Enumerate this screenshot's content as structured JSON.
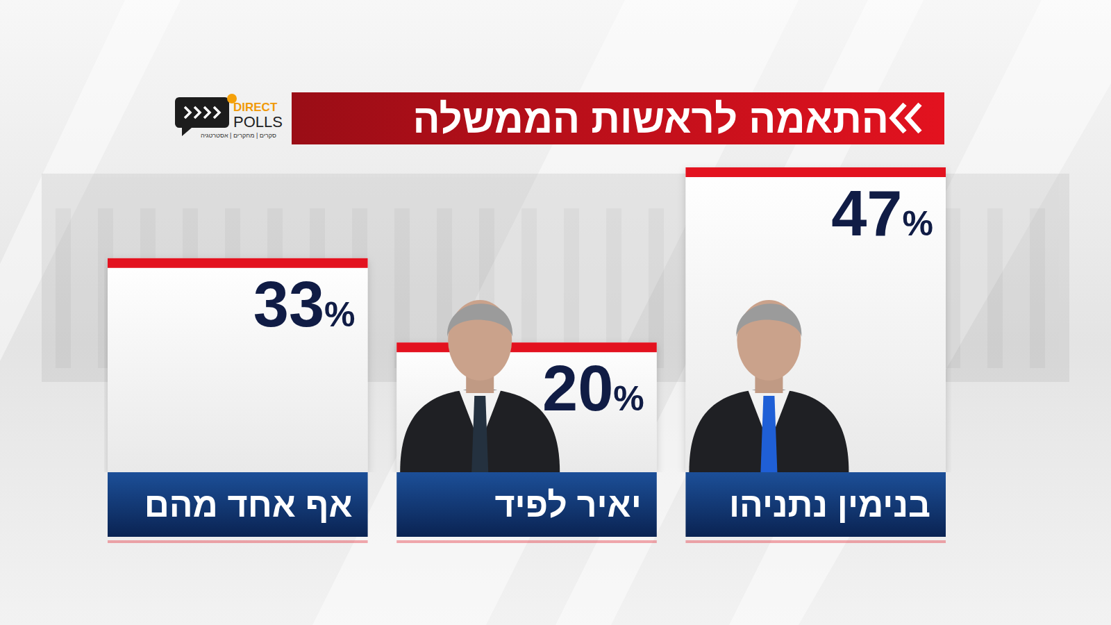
{
  "chart_data": {
    "type": "bar",
    "title": "התאמה לראשות הממשלה",
    "categories": [
      "בנימין נתניהו",
      "יאיר לפיד",
      "אף אחד מהם"
    ],
    "values": [
      47,
      20,
      33
    ],
    "value_labels": [
      "47%",
      "20%",
      "33%"
    ],
    "color": "#ffffff",
    "ylim": [
      0,
      50
    ],
    "data_labels": true,
    "tick_labels": false,
    "annotations": [
      "DIRECT",
      "POLLS",
      "סקרים | מחקרים | אסטרטגיה"
    ]
  }
}
